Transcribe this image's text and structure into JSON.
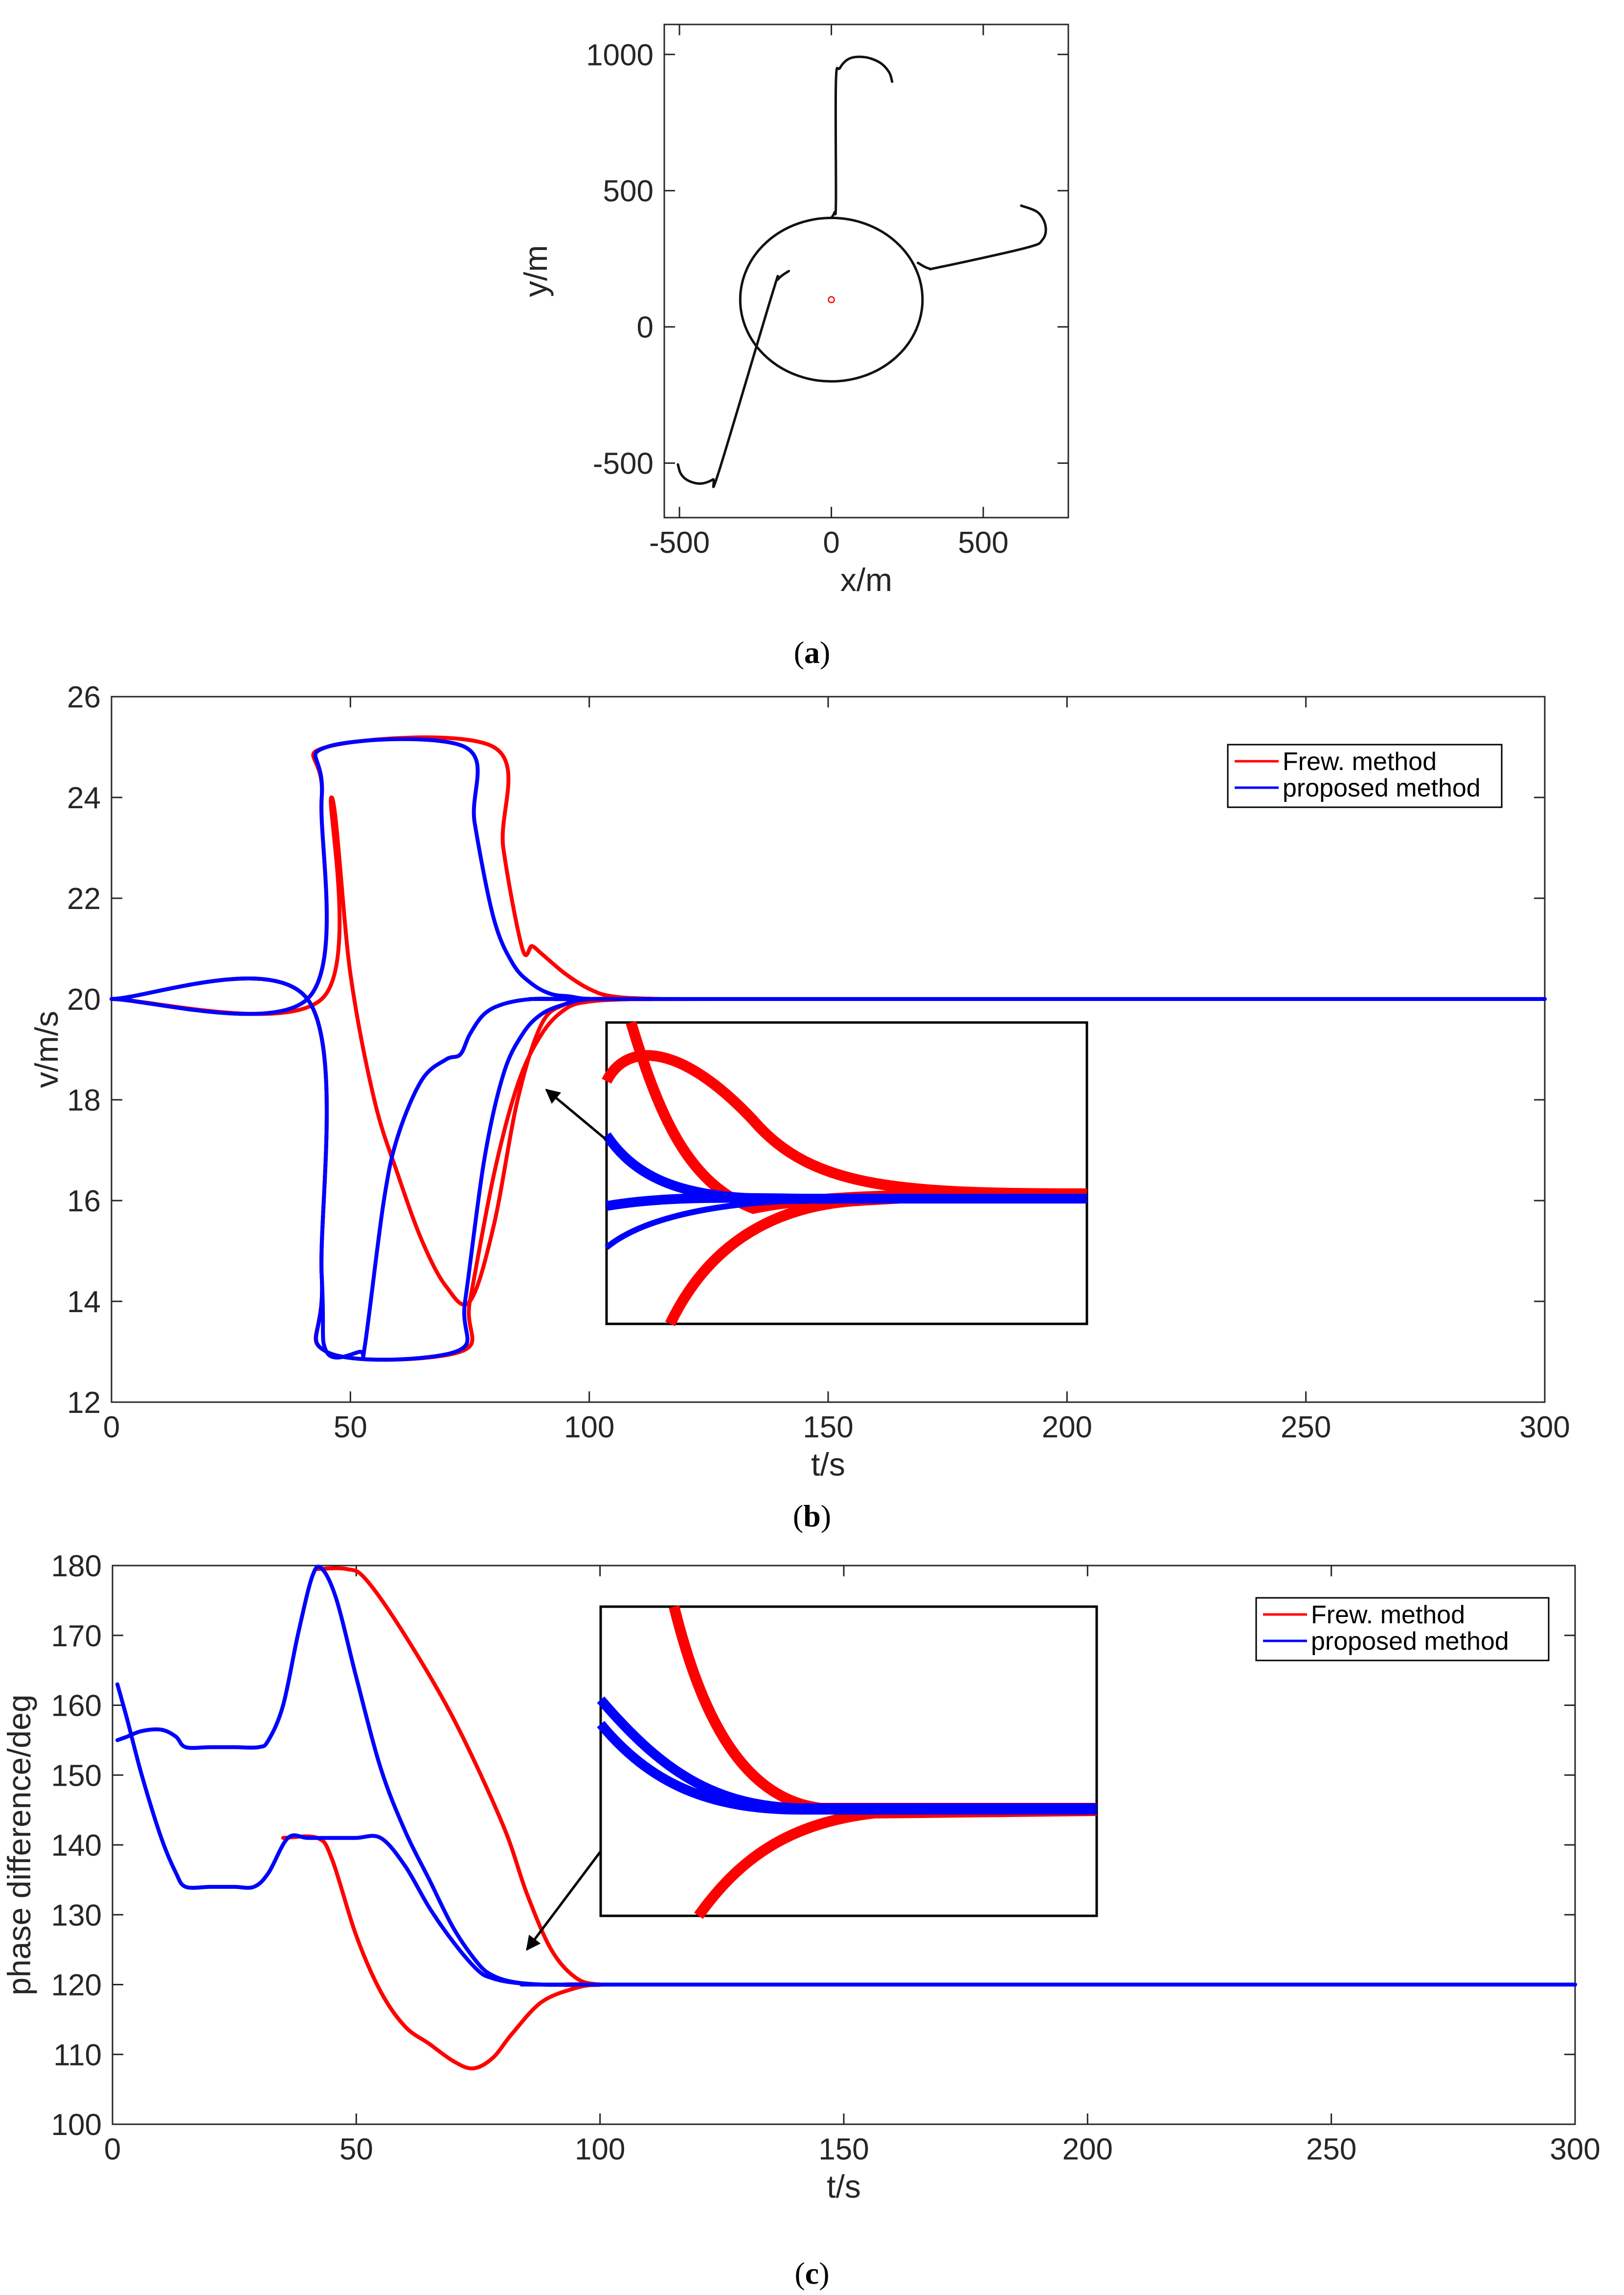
{
  "panels": {
    "a": {
      "caption_open": "(",
      "caption_letter": "a",
      "caption_close": ")"
    },
    "b": {
      "caption_open": "(",
      "caption_letter": "b",
      "caption_close": ")"
    },
    "c": {
      "caption_open": "(",
      "caption_letter": "c",
      "caption_close": ")"
    }
  },
  "chart_data": [
    {
      "id": "a",
      "type": "line",
      "title": "",
      "xlabel": "x/m",
      "ylabel": "y/m",
      "xlim": [
        -550,
        780
      ],
      "ylim": [
        -700,
        1110
      ],
      "xticks": [
        -500,
        0,
        500
      ],
      "yticks": [
        -500,
        0,
        500,
        1000
      ],
      "xtick_labels": [
        "-500",
        "0",
        "500"
      ],
      "ytick_labels": [
        "-500",
        "0",
        "500",
        "1000"
      ],
      "grid": false,
      "center_marker": {
        "x": 0,
        "y": 100,
        "color": "#ff0000"
      },
      "circle": {
        "cx": 0,
        "cy": 100,
        "r": 300
      },
      "paths": [
        {
          "name": "branch-north",
          "points": [
            [
              0,
              400
            ],
            [
              10,
              420
            ],
            [
              15,
              460
            ],
            [
              15,
              900
            ],
            [
              28,
              950
            ],
            [
              60,
              985
            ],
            [
              110,
              990
            ],
            [
              160,
              970
            ],
            [
              190,
              935
            ],
            [
              200,
              900
            ]
          ]
        },
        {
          "name": "branch-east",
          "points": [
            [
              285,
              235
            ],
            [
              320,
              215
            ],
            [
              360,
              220
            ],
            [
              640,
              290
            ],
            [
              695,
              320
            ],
            [
              705,
              370
            ],
            [
              680,
              420
            ],
            [
              625,
              445
            ]
          ]
        },
        {
          "name": "branch-southwest",
          "points": [
            [
              -140,
              205
            ],
            [
              -175,
              175
            ],
            [
              -195,
              120
            ],
            [
              -370,
              -530
            ],
            [
              -390,
              -560
            ],
            [
              -430,
              -575
            ],
            [
              -470,
              -565
            ],
            [
              -495,
              -540
            ],
            [
              -505,
              -505
            ]
          ]
        }
      ]
    },
    {
      "id": "b",
      "type": "line",
      "title": "",
      "xlabel": "t/s",
      "ylabel": "v/m/s",
      "xlim": [
        0,
        300
      ],
      "ylim": [
        12,
        26
      ],
      "xticks": [
        0,
        50,
        100,
        150,
        200,
        250,
        300
      ],
      "yticks": [
        12,
        14,
        16,
        18,
        20,
        22,
        24,
        26
      ],
      "xtick_labels": [
        "0",
        "50",
        "100",
        "150",
        "200",
        "250",
        "300"
      ],
      "ytick_labels": [
        "12",
        "14",
        "16",
        "18",
        "20",
        "22",
        "24",
        "26"
      ],
      "grid": false,
      "legend_position": "top-right",
      "legend": [
        {
          "label": "Frew. method",
          "color": "#ff0000"
        },
        {
          "label": "proposed method",
          "color": "#0000ff"
        }
      ],
      "series": [
        {
          "name": "Frew. method",
          "color": "#ff0000",
          "x": [
            0,
            44,
            46,
            50,
            55,
            60,
            65,
            70,
            75,
            80,
            85,
            90,
            95,
            100,
            110,
            120,
            300
          ],
          "y": [
            20,
            20,
            24,
            20.5,
            18,
            16.5,
            15.2,
            14.3,
            14,
            15.5,
            18,
            19.5,
            19.9,
            20,
            20,
            20,
            20
          ]
        },
        {
          "name": "Frew. method",
          "color": "#ff0000",
          "x": [
            0,
            41,
            44,
            45,
            73,
            75,
            80,
            85,
            90,
            95,
            100,
            110,
            120,
            300
          ],
          "y": [
            20,
            20,
            14.5,
            13,
            13,
            14,
            16.5,
            18.3,
            19.3,
            19.8,
            19.95,
            20,
            20,
            20
          ]
        },
        {
          "name": "Frew. method",
          "color": "#ff0000",
          "x": [
            0,
            41,
            44,
            45,
            80,
            82,
            86,
            88,
            90,
            95,
            100,
            105,
            115,
            125,
            300
          ],
          "y": [
            20,
            20,
            24,
            25,
            25,
            23,
            21,
            21.05,
            20.9,
            20.5,
            20.2,
            20.05,
            20,
            20,
            20
          ]
        },
        {
          "name": "proposed method",
          "color": "#0000ff",
          "x": [
            0,
            41,
            44,
            45,
            52,
            53,
            57,
            60,
            65,
            70,
            73,
            75,
            78,
            82,
            88,
            95,
            105,
            300
          ],
          "y": [
            20,
            20,
            14.5,
            13,
            13,
            13.1,
            16,
            17.3,
            18.4,
            18.8,
            18.9,
            19.3,
            19.7,
            19.9,
            20,
            20,
            20,
            20
          ]
        },
        {
          "name": "proposed method",
          "color": "#0000ff",
          "x": [
            0,
            41,
            44,
            45,
            74,
            76,
            80,
            84,
            88,
            92,
            96,
            100,
            110,
            300
          ],
          "y": [
            20,
            20,
            24,
            25,
            25,
            23.5,
            21.6,
            20.7,
            20.3,
            20.1,
            20.05,
            20,
            20,
            20
          ]
        },
        {
          "name": "proposed method",
          "color": "#0000ff",
          "x": [
            0,
            41,
            44,
            45,
            72,
            74,
            78,
            82,
            86,
            90,
            95,
            100,
            110,
            300
          ],
          "y": [
            20,
            20,
            14.5,
            13,
            13,
            14,
            16.8,
            18.5,
            19.3,
            19.7,
            19.9,
            20,
            20,
            20
          ]
        }
      ],
      "inset": {
        "zoomed": true,
        "arrow": true
      }
    },
    {
      "id": "c",
      "type": "line",
      "title": "",
      "xlabel": "t/s",
      "ylabel": "phase difference/deg",
      "xlim": [
        0,
        300
      ],
      "ylim": [
        100,
        180
      ],
      "xticks": [
        0,
        50,
        100,
        150,
        200,
        250,
        300
      ],
      "yticks": [
        100,
        110,
        120,
        130,
        140,
        150,
        160,
        170,
        180
      ],
      "xtick_labels": [
        "0",
        "50",
        "100",
        "150",
        "200",
        "250",
        "300"
      ],
      "ytick_labels": [
        "100",
        "110",
        "120",
        "130",
        "140",
        "150",
        "160",
        "170",
        "180"
      ],
      "grid": false,
      "legend_position": "top-right",
      "legend": [
        {
          "label": "Frew. method",
          "color": "#ff0000"
        },
        {
          "label": "proposed method",
          "color": "#0000ff"
        }
      ],
      "series": [
        {
          "name": "Frew. method",
          "color": "#ff0000",
          "x": [
            42,
            48,
            52,
            60,
            70,
            80,
            85,
            90,
            95,
            100,
            110,
            300
          ],
          "y": [
            179.5,
            179.5,
            178,
            170,
            158,
            143,
            133,
            125,
            121,
            120,
            120,
            120
          ]
        },
        {
          "name": "Frew. method",
          "color": "#ff0000",
          "x": [
            35,
            42,
            45,
            50,
            55,
            60,
            65,
            70,
            74,
            78,
            82,
            88,
            95,
            100,
            110,
            300
          ],
          "y": [
            141,
            141,
            138,
            127,
            119,
            114,
            111.5,
            109,
            108,
            109.5,
            113,
            117.5,
            119.5,
            120,
            120,
            120
          ]
        },
        {
          "name": "proposed method",
          "color": "#0000ff",
          "x": [
            1,
            3,
            6,
            10,
            13,
            15,
            20,
            25,
            30,
            32,
            35,
            38,
            41,
            43,
            46,
            50,
            55,
            60,
            65,
            70,
            75,
            78,
            82,
            88,
            95,
            100,
            300
          ],
          "y": [
            155,
            155.5,
            156.3,
            156.5,
            155.5,
            154,
            154,
            154,
            154,
            155,
            160,
            170,
            178.5,
            179.5,
            175,
            164,
            151,
            142,
            135,
            128,
            123,
            121.3,
            120.4,
            120,
            120,
            120,
            120
          ]
        },
        {
          "name": "proposed method",
          "color": "#0000ff",
          "x": [
            1,
            3,
            6,
            10,
            13,
            15,
            20,
            25,
            29,
            32,
            36,
            40,
            45,
            50,
            55,
            60,
            65,
            70,
            75,
            78,
            82,
            88,
            95,
            100,
            300
          ],
          "y": [
            163,
            158,
            150,
            141,
            136,
            134,
            134,
            134,
            134,
            136,
            141,
            141,
            141,
            141,
            141,
            137,
            131,
            126,
            122,
            120.9,
            120.3,
            120,
            120,
            120,
            120
          ]
        }
      ],
      "inset": {
        "zoomed": true,
        "arrow": true
      }
    }
  ]
}
